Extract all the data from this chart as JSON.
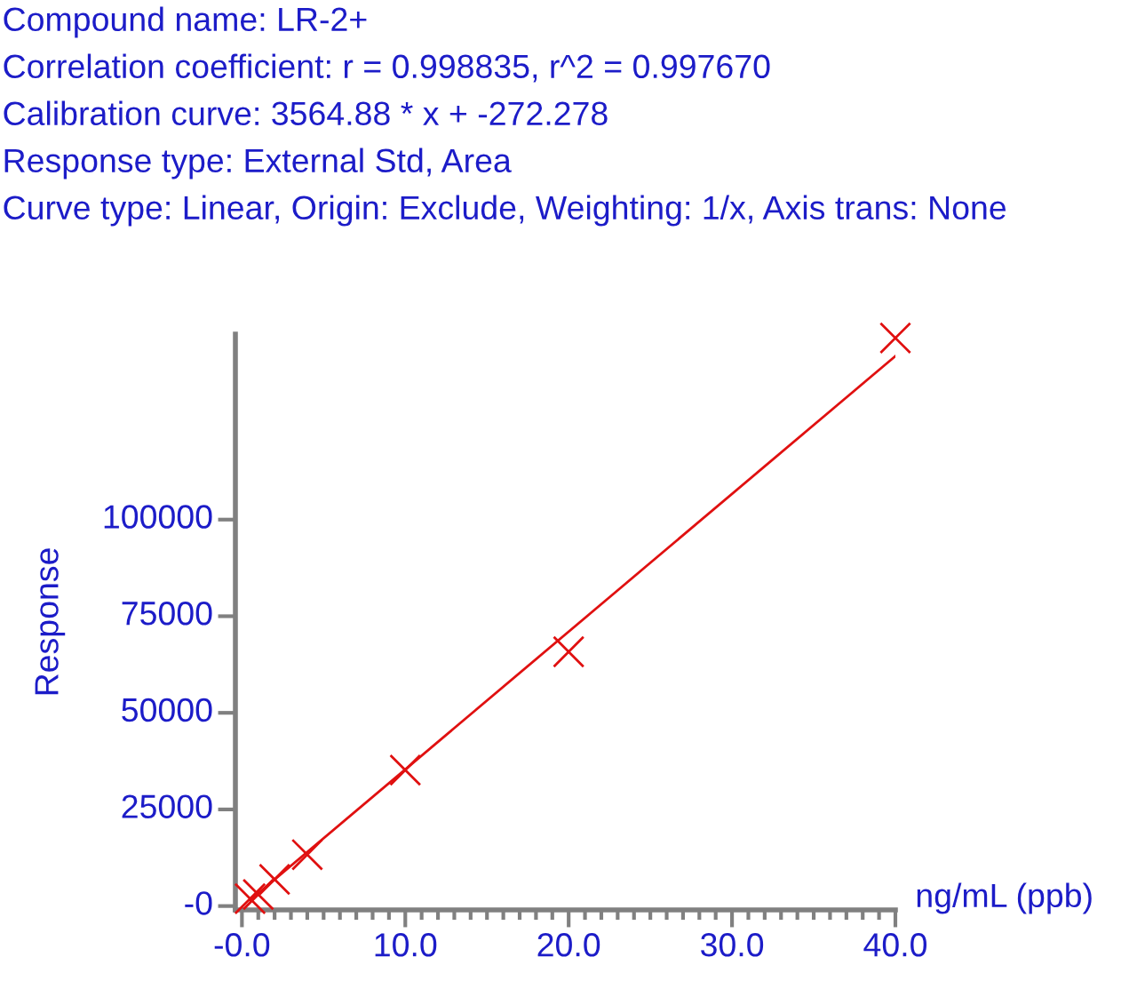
{
  "chart_data": {
    "type": "scatter",
    "annotations": [
      "Compound name: LR-2+",
      "Correlation coefficient: r = 0.998835, r^2 = 0.997670",
      "Calibration curve: 3564.88 * x + -272.278",
      "Response type: External Std, Area",
      "Curve type: Linear, Origin: Exclude, Weighting: 1/x, Axis trans: None"
    ],
    "xlabel": "ng/mL (ppb)",
    "ylabel": "Response",
    "series": [
      {
        "color": "#e01010",
        "marker": "cross",
        "x": [
          0.5,
          1,
          2,
          4,
          10,
          20,
          40
        ],
        "values": [
          1900,
          3000,
          6900,
          13300,
          35200,
          65800,
          147000
        ]
      },
      {
        "type": "line",
        "color": "#e01010",
        "x": [
          0.5,
          40
        ],
        "values": [
          1500,
          142300
        ]
      }
    ],
    "xlim": [
      -0.4,
      40
    ],
    "ylim": [
      -1000,
      148000
    ],
    "xticks": [
      {
        "value": 0,
        "label": "-0.0"
      },
      {
        "value": 10,
        "label": "10.0"
      },
      {
        "value": 20,
        "label": "20.0"
      },
      {
        "value": 30,
        "label": "30.0"
      },
      {
        "value": 40,
        "label": "40.0"
      }
    ],
    "yticks": [
      {
        "value": 0,
        "label": "-0"
      },
      25000,
      50000,
      75000,
      100000
    ],
    "grid": false,
    "legend": false
  }
}
